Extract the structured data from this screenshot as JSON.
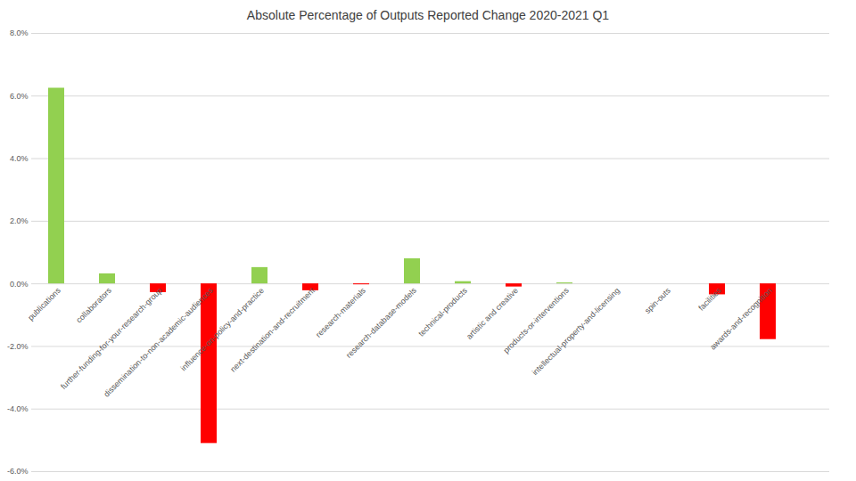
{
  "chart_data": {
    "type": "bar",
    "title": "Absolute Percentage of Outputs Reported Change 2020-2021 Q1",
    "categories": [
      "publications",
      "collaborators",
      "further-funding-for-your-research-group",
      "dissemination-to-non-academic-audiences",
      "influence-on-policy-and-practice",
      "next-destination-and-recruitment",
      "research-materials",
      "research-database-models",
      "technical-products",
      "artistic and creative",
      "products-or-interventions",
      "intellectual-property-and-licensing",
      "spin-outs",
      "facilities",
      "awards-and-recognition"
    ],
    "values": [
      6.25,
      0.32,
      -0.28,
      -5.1,
      0.52,
      -0.22,
      -0.03,
      0.8,
      0.07,
      -0.1,
      0.03,
      0,
      0,
      -0.35,
      -1.78
    ],
    "colors": [
      "#92d050",
      "#92d050",
      "#ff0000",
      "#ff0000",
      "#92d050",
      "#ff0000",
      "#ff0000",
      "#92d050",
      "#92d050",
      "#ff0000",
      "#92d050",
      "#92d050",
      "#92d050",
      "#ff0000",
      "#ff0000"
    ],
    "ylim": [
      -6,
      8
    ],
    "yticks": [
      {
        "value": -6,
        "label": "-6.0%"
      },
      {
        "value": -4,
        "label": "-4.0%"
      },
      {
        "value": -2,
        "label": "-2.0%"
      },
      {
        "value": 0,
        "label": "0.0%"
      },
      {
        "value": 2,
        "label": "2.0%"
      },
      {
        "value": 4,
        "label": "4.0%"
      },
      {
        "value": 6,
        "label": "6.0%"
      },
      {
        "value": 8,
        "label": "8.0%"
      }
    ],
    "grid": true
  }
}
